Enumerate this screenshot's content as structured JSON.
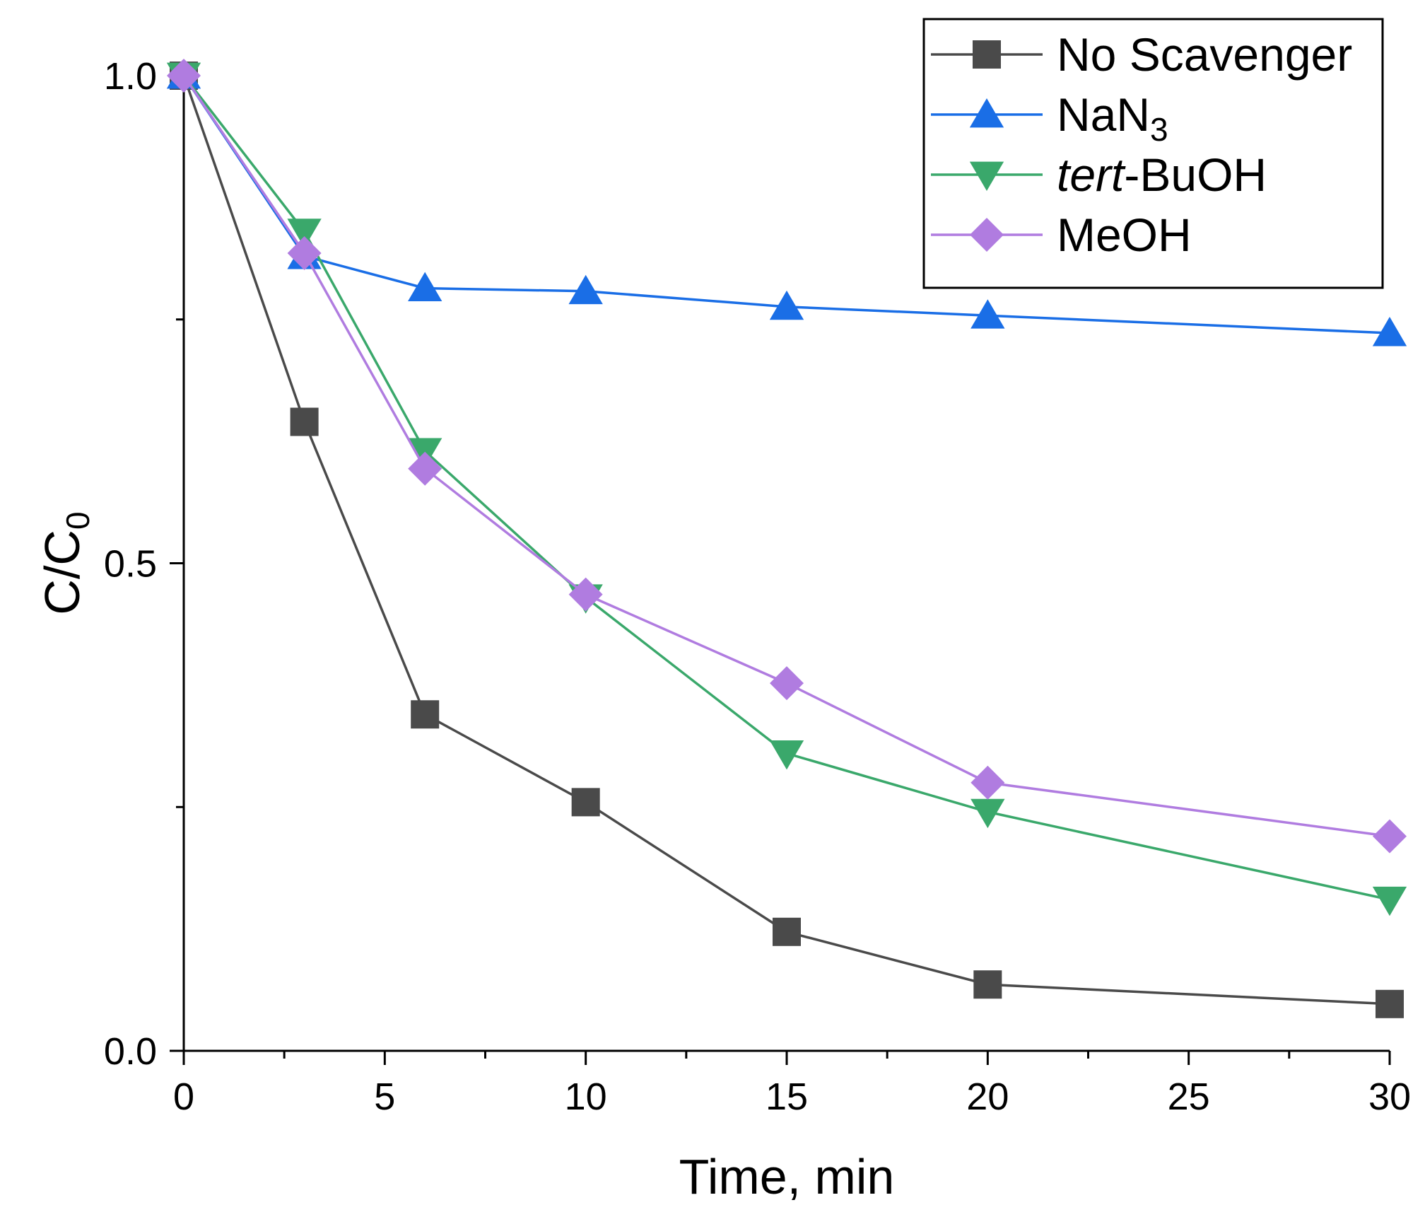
{
  "chart_data": {
    "type": "line",
    "title": "",
    "xlabel": "Time, min",
    "ylabel": {
      "main": "C/C",
      "sub": "0"
    },
    "xlim": [
      0,
      30
    ],
    "ylim": [
      0,
      1
    ],
    "x_ticks": [
      0,
      5,
      10,
      15,
      20,
      25,
      30
    ],
    "x_tick_labels": [
      "0",
      "5",
      "10",
      "15",
      "20",
      "25",
      "30"
    ],
    "y_ticks": [
      0,
      0.5,
      1
    ],
    "y_tick_labels": [
      "0.0",
      "0.5",
      "1.0"
    ],
    "grid": false,
    "legend_position": "top-right",
    "series": [
      {
        "name": "No Scavenger",
        "marker": "square",
        "color": "#4a4a4a",
        "x": [
          0,
          3,
          6,
          10,
          15,
          20,
          30
        ],
        "y": [
          1.0,
          0.645,
          0.345,
          0.255,
          0.122,
          0.068,
          0.048
        ]
      },
      {
        "name": "NaN",
        "name_sub": "3",
        "marker": "triangle-up",
        "color": "#1a6ee6",
        "x": [
          0,
          3,
          6,
          10,
          15,
          20,
          30
        ],
        "y": [
          1.0,
          0.815,
          0.782,
          0.779,
          0.763,
          0.754,
          0.736
        ]
      },
      {
        "name": "-BuOH",
        "name_italic": "tert",
        "marker": "triangle-down",
        "color": "#3aa86b",
        "x": [
          0,
          3,
          6,
          10,
          15,
          20,
          30
        ],
        "y": [
          1.0,
          0.84,
          0.615,
          0.465,
          0.305,
          0.245,
          0.155
        ]
      },
      {
        "name": "MeOH",
        "marker": "diamond",
        "color": "#b07ce0",
        "x": [
          0,
          3,
          6,
          10,
          15,
          20,
          30
        ],
        "y": [
          1.0,
          0.818,
          0.597,
          0.468,
          0.377,
          0.275,
          0.22
        ]
      }
    ]
  }
}
